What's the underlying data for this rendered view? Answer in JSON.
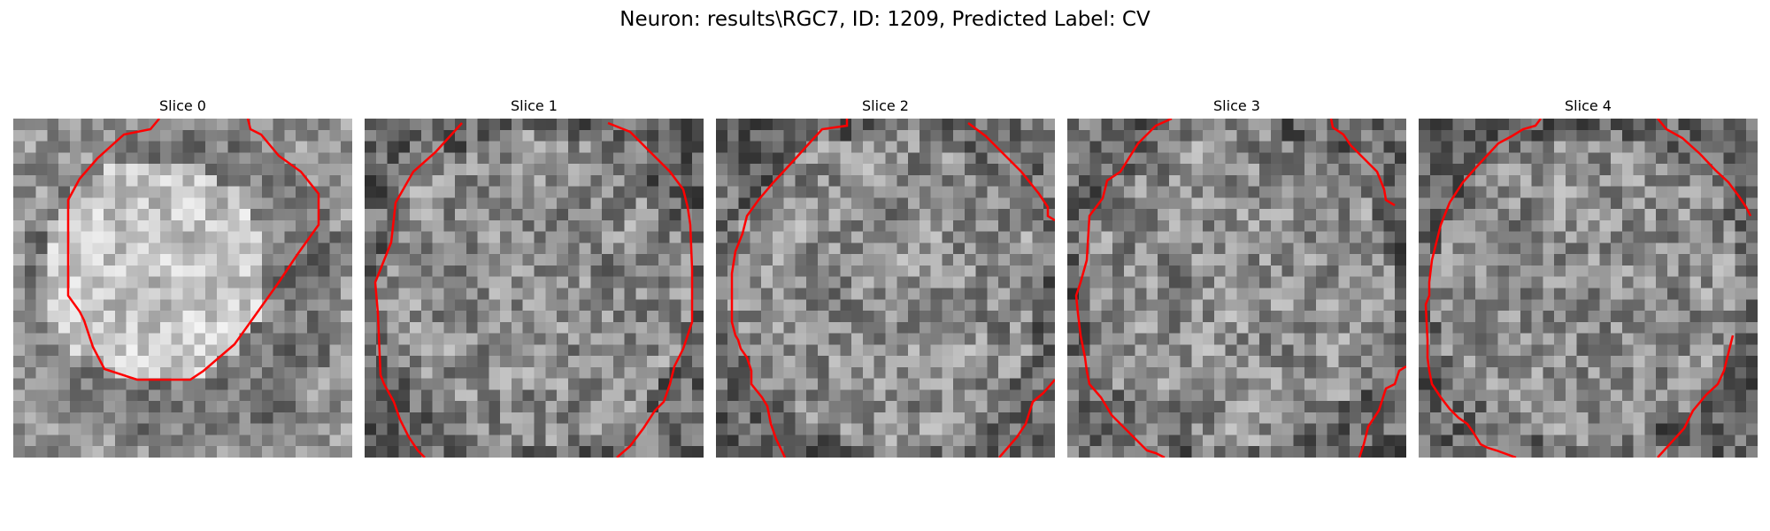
{
  "title": "Neuron: results\\RGC7, ID: 1209, Predicted Label: CV",
  "colors": {
    "contour": "#ff0000",
    "background": "#ffffff"
  },
  "slices": [
    {
      "title": "Slice 0",
      "seed": 11,
      "profile": "blob"
    },
    {
      "title": "Slice 1",
      "seed": 23,
      "profile": "uniform"
    },
    {
      "title": "Slice 2",
      "seed": 37,
      "profile": "uniform"
    },
    {
      "title": "Slice 3",
      "seed": 41,
      "profile": "uniform"
    },
    {
      "title": "Slice 4",
      "seed": 53,
      "profile": "uniform"
    }
  ]
}
